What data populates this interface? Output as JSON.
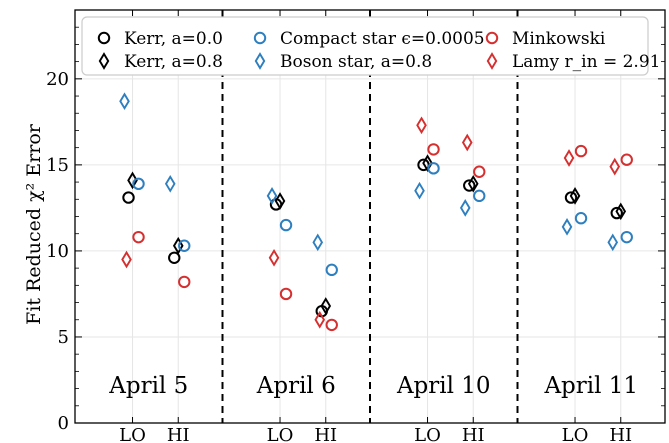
{
  "chart_data": {
    "type": "scatter",
    "ylabel": "Fit Reduced χ² Error",
    "ylim": [
      0,
      24
    ],
    "yticks": [
      0,
      5,
      10,
      15,
      20
    ],
    "grid": true,
    "legend_position": "top",
    "panels": [
      {
        "label": "April 5",
        "ticks": [
          "LO",
          "HI"
        ]
      },
      {
        "label": "April 6",
        "ticks": [
          "LO",
          "HI"
        ]
      },
      {
        "label": "April 10",
        "ticks": [
          "LO",
          "HI"
        ]
      },
      {
        "label": "April 11",
        "ticks": [
          "LO",
          "HI"
        ]
      }
    ],
    "series": [
      {
        "name": "Kerr, a=0.0",
        "marker": "circle",
        "color": "#000000",
        "values": [
          [
            13.1,
            9.6
          ],
          [
            12.7,
            6.5
          ],
          [
            15.0,
            13.8
          ],
          [
            13.1,
            12.2
          ]
        ]
      },
      {
        "name": "Kerr, a=0.8",
        "marker": "diamond",
        "color": "#000000",
        "values": [
          [
            14.1,
            10.3
          ],
          [
            12.9,
            6.8
          ],
          [
            15.1,
            13.9
          ],
          [
            13.2,
            12.3
          ]
        ]
      },
      {
        "name": "Compact star ϵ=0.0005",
        "marker": "circle",
        "color": "#2e7fbf",
        "values": [
          [
            13.9,
            10.3
          ],
          [
            11.5,
            8.9
          ],
          [
            14.8,
            13.2
          ],
          [
            11.9,
            10.8
          ]
        ]
      },
      {
        "name": "Boson star, a=0.8",
        "marker": "diamond",
        "color": "#2e7fbf",
        "values": [
          [
            18.7,
            13.9
          ],
          [
            13.2,
            10.5
          ],
          [
            13.5,
            12.5
          ],
          [
            11.4,
            10.5
          ]
        ]
      },
      {
        "name": "Minkowski",
        "marker": "circle",
        "color": "#d62f2f",
        "values": [
          [
            10.8,
            8.2
          ],
          [
            7.5,
            5.7
          ],
          [
            15.9,
            14.6
          ],
          [
            15.8,
            15.3
          ]
        ]
      },
      {
        "name": "Lamy r_in = 2.91",
        "marker": "diamond",
        "color": "#d62f2f",
        "values": [
          [
            9.5,
            null
          ],
          [
            9.6,
            6.0
          ],
          [
            17.3,
            16.3
          ],
          [
            15.4,
            14.9
          ]
        ]
      }
    ],
    "legend": {
      "rows": [
        [
          "Kerr, a=0.0",
          "Compact star ϵ=0.0005",
          "Minkowski"
        ],
        [
          "Kerr, a=0.8",
          "Boson star, a=0.8",
          "Lamy r_in = 2.91"
        ]
      ]
    }
  }
}
